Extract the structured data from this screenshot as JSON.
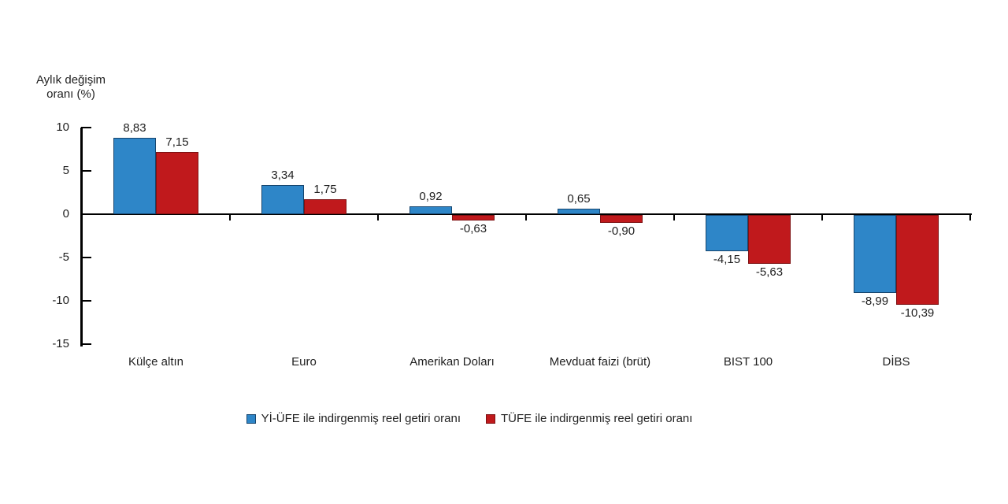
{
  "chart_data": {
    "type": "bar",
    "title": "",
    "ylabel_lines": [
      "Aylık değişim",
      "oranı (%)"
    ],
    "xlabel": "",
    "categories": [
      "Külçe altın",
      "Euro",
      "Amerikan Doları",
      "Mevduat faizi (brüt)",
      "BIST 100",
      "DİBS"
    ],
    "series": [
      {
        "name": "Yİ-ÜFE ile indirgenmiş reel getiri oranı",
        "color": "#2E86C8",
        "border_color": "#16456E",
        "values": [
          8.83,
          3.34,
          0.92,
          0.65,
          -4.15,
          -8.99
        ],
        "labels": [
          "8,83",
          "3,34",
          "0,92",
          "0,65",
          "-4,15",
          "-8,99"
        ]
      },
      {
        "name": "TÜFE ile indirgenmiş reel getiri oranı",
        "color": "#C0191C",
        "border_color": "#7E1113",
        "values": [
          7.15,
          1.75,
          -0.63,
          -0.9,
          -5.63,
          -10.39
        ],
        "labels": [
          "7,15",
          "1,75",
          "-0,63",
          "-0,90",
          "-5,63",
          "-10,39"
        ]
      }
    ],
    "yticks": [
      10,
      5,
      0,
      -5,
      -10,
      -15
    ],
    "ytick_labels": [
      "10",
      "5",
      "0",
      "-5",
      "-10",
      "-15"
    ],
    "ylim": [
      -15,
      10
    ],
    "grid": false,
    "legend_position": "bottom",
    "axis_color": "#000000",
    "text_color": "#1f1f1f",
    "background_color": "#ffffff"
  }
}
